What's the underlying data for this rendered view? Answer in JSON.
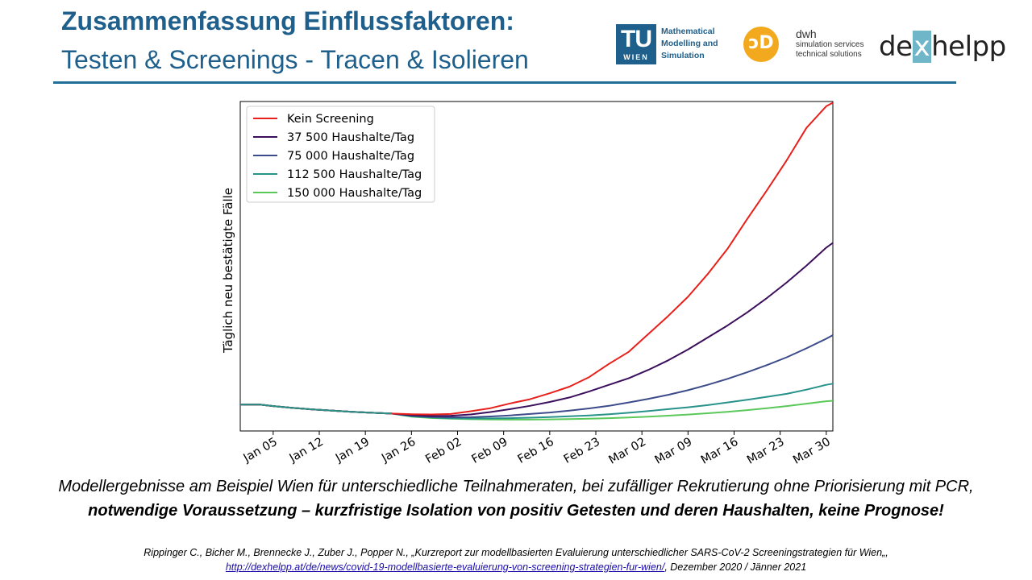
{
  "slide": {
    "title_line1": "Zusammenfassung Einflussfaktoren:",
    "title_line2": "Testen & Screenings - Tracen & Isolieren"
  },
  "logos": {
    "tu": {
      "mark": "TU",
      "sub": "WIEN",
      "line1": "Mathematical",
      "line2": "Modelling and",
      "line3": "Simulation"
    },
    "dwh": {
      "name": "dwh",
      "line1": "simulation services",
      "line2": "technical solutions"
    },
    "dex": {
      "pre": "de",
      "x": "x",
      "post": "helpp"
    }
  },
  "caption": {
    "line1": "Modellergebnisse am Beispiel Wien für unterschiedliche Teilnahmeraten, bei zufälliger Rekrutierung ohne Priorisierung mit PCR,",
    "line2": "notwendige Voraussetzung – kurzfristige Isolation von positiv Getesten und deren Haushalten, keine Prognose!"
  },
  "reference": {
    "line1": "Rippinger C., Bicher M., Brennecke J., Zuber J., Popper N., „Kurzreport zur modellbasierten Evaluierung unterschiedlicher SARS-CoV-2 Screeningstrategien für Wien„,",
    "link": "http://dexhelpp.at/de/news/covid-19-modellbasierte-evaluierung-von-screening-strategien-fur-wien/",
    "suffix": ", Dezember 2020 / Jänner 2021"
  },
  "colors": {
    "title": "#1f5f8b",
    "rule": "#1f6f99",
    "series": [
      "#e8201c",
      "#3b0f5c",
      "#3c4b8a",
      "#27918a",
      "#5bc85a"
    ]
  },
  "chart_data": {
    "type": "line",
    "title": "",
    "xlabel": "",
    "ylabel": "Täglich neu bestätigte Fälle",
    "x_ticks": [
      "Jan 05",
      "Jan 12",
      "Jan 19",
      "Jan 26",
      "Feb 02",
      "Feb 09",
      "Feb 16",
      "Feb 23",
      "Mar 02",
      "Mar 09",
      "Mar 16",
      "Mar 23",
      "Mar 30"
    ],
    "x_range_days": [
      -5,
      85
    ],
    "y_ticks_shown": false,
    "grid": false,
    "legend_position": "top-left",
    "common_start": [
      [
        -5,
        1.3
      ],
      [
        -2,
        1.3
      ],
      [
        0,
        1.18
      ],
      [
        3,
        1.02
      ],
      [
        6,
        0.9
      ],
      [
        9,
        0.8
      ],
      [
        12,
        0.7
      ],
      [
        15,
        0.62
      ],
      [
        18,
        0.55
      ]
    ],
    "series": [
      {
        "name": "Kein Screening",
        "points": [
          [
            18,
            0.55
          ],
          [
            21,
            0.5
          ],
          [
            24,
            0.48
          ],
          [
            27,
            0.52
          ],
          [
            30,
            0.75
          ],
          [
            33,
            1.0
          ],
          [
            36,
            1.4
          ],
          [
            39,
            1.75
          ],
          [
            42,
            2.25
          ],
          [
            45,
            2.8
          ],
          [
            48,
            3.6
          ],
          [
            51,
            4.7
          ],
          [
            54,
            5.7
          ],
          [
            57,
            7.2
          ],
          [
            60,
            8.7
          ],
          [
            63,
            10.3
          ],
          [
            66,
            12.2
          ],
          [
            69,
            14.3
          ],
          [
            72,
            16.8
          ],
          [
            75,
            19.2
          ],
          [
            78,
            21.7
          ],
          [
            81,
            24.4
          ],
          [
            84,
            26.2
          ],
          [
            85,
            26.5
          ]
        ]
      },
      {
        "name": "37 500 Haushalte/Tag",
        "points": [
          [
            18,
            0.55
          ],
          [
            21,
            0.42
          ],
          [
            24,
            0.35
          ],
          [
            27,
            0.37
          ],
          [
            30,
            0.48
          ],
          [
            33,
            0.68
          ],
          [
            36,
            0.92
          ],
          [
            39,
            1.2
          ],
          [
            42,
            1.52
          ],
          [
            45,
            1.9
          ],
          [
            48,
            2.4
          ],
          [
            51,
            2.95
          ],
          [
            54,
            3.5
          ],
          [
            57,
            4.2
          ],
          [
            60,
            5.0
          ],
          [
            63,
            5.9
          ],
          [
            66,
            6.9
          ],
          [
            69,
            7.9
          ],
          [
            72,
            9.0
          ],
          [
            75,
            10.2
          ],
          [
            78,
            11.5
          ],
          [
            81,
            12.9
          ],
          [
            84,
            14.4
          ],
          [
            85,
            14.8
          ]
        ]
      },
      {
        "name": "75 000 Haushalte/Tag",
        "points": [
          [
            18,
            0.55
          ],
          [
            21,
            0.38
          ],
          [
            24,
            0.28
          ],
          [
            27,
            0.24
          ],
          [
            30,
            0.25
          ],
          [
            33,
            0.31
          ],
          [
            36,
            0.4
          ],
          [
            39,
            0.52
          ],
          [
            42,
            0.64
          ],
          [
            45,
            0.8
          ],
          [
            48,
            0.98
          ],
          [
            51,
            1.2
          ],
          [
            54,
            1.48
          ],
          [
            57,
            1.78
          ],
          [
            60,
            2.12
          ],
          [
            63,
            2.5
          ],
          [
            66,
            2.95
          ],
          [
            69,
            3.45
          ],
          [
            72,
            4.0
          ],
          [
            75,
            4.6
          ],
          [
            78,
            5.25
          ],
          [
            81,
            6.0
          ],
          [
            84,
            6.8
          ],
          [
            85,
            7.1
          ]
        ]
      },
      {
        "name": "112 500 Haushalte/Tag",
        "points": [
          [
            18,
            0.55
          ],
          [
            21,
            0.33
          ],
          [
            24,
            0.22
          ],
          [
            27,
            0.16
          ],
          [
            30,
            0.14
          ],
          [
            33,
            0.15
          ],
          [
            36,
            0.17
          ],
          [
            39,
            0.21
          ],
          [
            42,
            0.26
          ],
          [
            45,
            0.33
          ],
          [
            48,
            0.4
          ],
          [
            51,
            0.5
          ],
          [
            54,
            0.62
          ],
          [
            57,
            0.76
          ],
          [
            60,
            0.92
          ],
          [
            63,
            1.08
          ],
          [
            66,
            1.26
          ],
          [
            69,
            1.48
          ],
          [
            72,
            1.7
          ],
          [
            75,
            1.95
          ],
          [
            78,
            2.2
          ],
          [
            81,
            2.55
          ],
          [
            84,
            2.95
          ],
          [
            85,
            3.05
          ]
        ]
      },
      {
        "name": "150 000 Haushalte/Tag",
        "points": [
          [
            18,
            0.55
          ],
          [
            21,
            0.3
          ],
          [
            24,
            0.18
          ],
          [
            27,
            0.12
          ],
          [
            30,
            0.08
          ],
          [
            33,
            0.06
          ],
          [
            36,
            0.05
          ],
          [
            39,
            0.05
          ],
          [
            42,
            0.07
          ],
          [
            45,
            0.09
          ],
          [
            48,
            0.12
          ],
          [
            51,
            0.17
          ],
          [
            54,
            0.23
          ],
          [
            57,
            0.3
          ],
          [
            60,
            0.38
          ],
          [
            63,
            0.47
          ],
          [
            66,
            0.58
          ],
          [
            69,
            0.7
          ],
          [
            72,
            0.84
          ],
          [
            75,
            1.0
          ],
          [
            78,
            1.18
          ],
          [
            81,
            1.38
          ],
          [
            84,
            1.58
          ],
          [
            85,
            1.62
          ]
        ]
      }
    ]
  }
}
